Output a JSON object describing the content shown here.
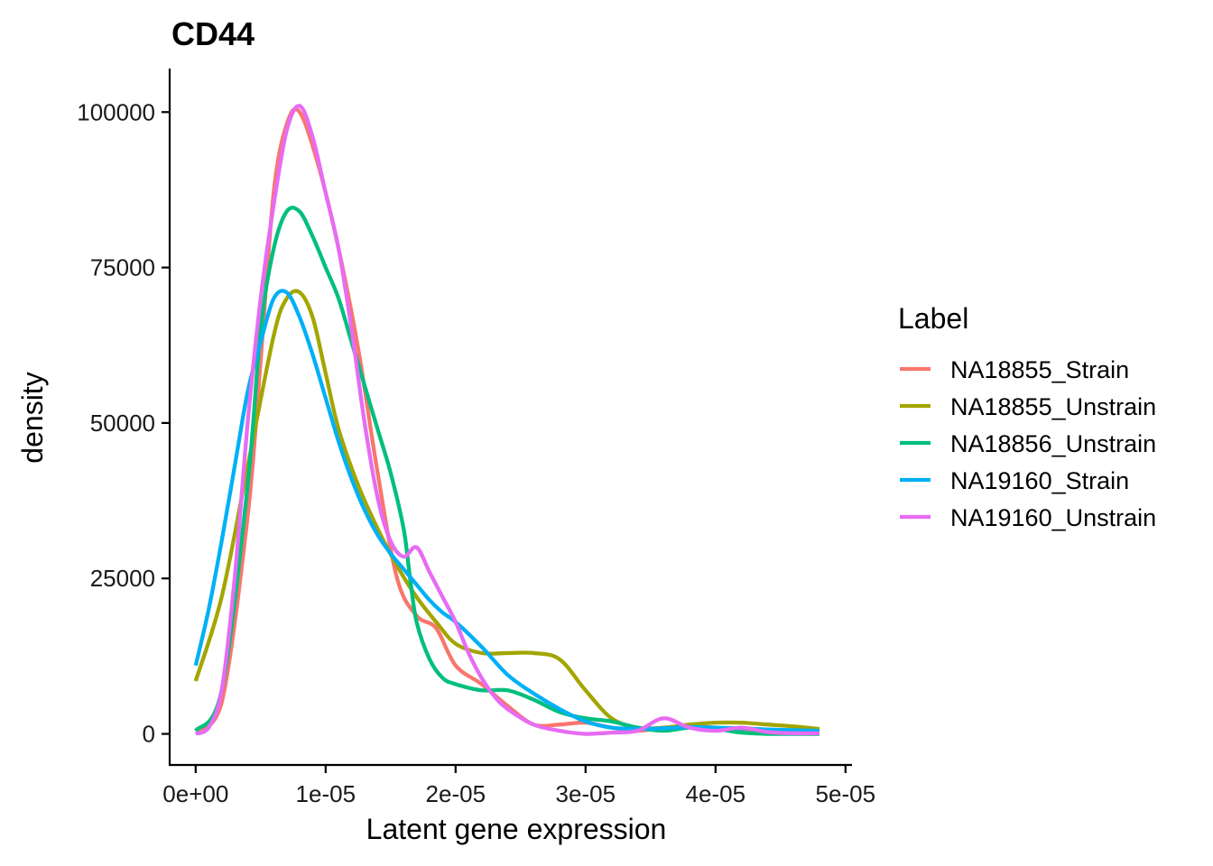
{
  "chart_data": {
    "type": "line",
    "title": "CD44",
    "xlabel": "Latent gene expression",
    "ylabel": "density",
    "xlim": [
      -2e-06,
      5.05e-05
    ],
    "ylim": [
      -5000,
      107000
    ],
    "x_ticks": [
      {
        "value": 0.0,
        "label": "0e+00"
      },
      {
        "value": 1e-05,
        "label": "1e-05"
      },
      {
        "value": 2e-05,
        "label": "2e-05"
      },
      {
        "value": 3e-05,
        "label": "3e-05"
      },
      {
        "value": 4e-05,
        "label": "4e-05"
      },
      {
        "value": 5e-05,
        "label": "5e-05"
      }
    ],
    "y_ticks": [
      {
        "value": 0,
        "label": "0"
      },
      {
        "value": 25000,
        "label": "25000"
      },
      {
        "value": 50000,
        "label": "50000"
      },
      {
        "value": 75000,
        "label": "75000"
      },
      {
        "value": 100000,
        "label": "100000"
      }
    ],
    "grid": false,
    "legend": {
      "title": "Label",
      "position": "right"
    },
    "series": [
      {
        "name": "NA18855_Strain",
        "color": "#F8766D",
        "x": [
          0.0,
          2e-06,
          4e-06,
          5e-06,
          6e-06,
          7e-06,
          8e-06,
          9.5e-06,
          1.1e-05,
          1.25e-05,
          1.4e-05,
          1.55e-05,
          1.7e-05,
          1.85e-05,
          2e-05,
          2.2e-05,
          2.4e-05,
          2.6e-05,
          2.8e-05,
          3e-05,
          3.2e-05,
          3.4e-05,
          3.6e-05,
          3.8e-05,
          4e-05,
          4.2e-05,
          4.4e-05,
          4.6e-05,
          4.8e-05
        ],
        "y": [
          500,
          5000,
          35000,
          60000,
          87000,
          98000,
          100000,
          91000,
          78000,
          62000,
          42000,
          25000,
          19000,
          17000,
          11000,
          8000,
          4500,
          1500,
          1500,
          1800,
          1000,
          500,
          1000,
          1200,
          1000,
          500,
          300,
          200,
          200
        ]
      },
      {
        "name": "NA18855_Unstrain",
        "color": "#A3A500",
        "x": [
          0.0,
          2e-06,
          4e-06,
          6e-06,
          7e-06,
          8e-06,
          9e-06,
          1e-05,
          1.1e-05,
          1.25e-05,
          1.4e-05,
          1.55e-05,
          1.7e-05,
          1.85e-05,
          2e-05,
          2.2e-05,
          2.4e-05,
          2.6e-05,
          2.8e-05,
          3e-05,
          3.2e-05,
          3.4e-05,
          3.6e-05,
          3.8e-05,
          4e-05,
          4.2e-05,
          4.4e-05,
          4.6e-05,
          4.8e-05
        ],
        "y": [
          8500,
          22000,
          43000,
          64000,
          70000,
          71000,
          67000,
          58000,
          49000,
          40000,
          33000,
          27000,
          22000,
          18000,
          14500,
          13000,
          13000,
          13000,
          12000,
          7000,
          2500,
          1000,
          1000,
          1500,
          1800,
          1800,
          1500,
          1200,
          800
        ]
      },
      {
        "name": "NA18856_Unstrain",
        "color": "#00BF7D",
        "x": [
          0.0,
          2e-06,
          4e-06,
          5e-06,
          6e-06,
          7e-06,
          8e-06,
          9e-06,
          1e-05,
          1.1e-05,
          1.2e-05,
          1.3e-05,
          1.4e-05,
          1.5e-05,
          1.6e-05,
          1.65e-05,
          1.7e-05,
          1.8e-05,
          1.9e-05,
          2e-05,
          2.2e-05,
          2.4e-05,
          2.6e-05,
          2.8e-05,
          3e-05,
          3.2e-05,
          3.4e-05,
          3.6e-05,
          3.8e-05,
          4e-05,
          4.2e-05,
          4.4e-05,
          4.6e-05,
          4.8e-05
        ],
        "y": [
          500,
          7000,
          40000,
          65000,
          78000,
          84000,
          84000,
          80000,
          75000,
          70000,
          63000,
          56000,
          49000,
          42000,
          33000,
          25000,
          18000,
          12000,
          9000,
          8000,
          7000,
          7000,
          5500,
          3500,
          2500,
          2000,
          1000,
          500,
          1000,
          800,
          200,
          0,
          0,
          0
        ]
      },
      {
        "name": "NA19160_Strain",
        "color": "#00B0F6",
        "x": [
          0.0,
          1e-06,
          2e-06,
          3e-06,
          4e-06,
          5e-06,
          6e-06,
          7e-06,
          8e-06,
          9e-06,
          1e-05,
          1.1e-05,
          1.2e-05,
          1.3e-05,
          1.4e-05,
          1.5e-05,
          1.6e-05,
          1.7e-05,
          1.8e-05,
          1.9e-05,
          2e-05,
          2.2e-05,
          2.4e-05,
          2.6e-05,
          2.8e-05,
          3e-05,
          3.2e-05,
          3.4e-05,
          3.6e-05,
          3.8e-05,
          4e-05,
          4.2e-05,
          4.4e-05,
          4.6e-05,
          4.8e-05
        ],
        "y": [
          11000,
          20000,
          31000,
          43000,
          55000,
          63000,
          70000,
          71000,
          67000,
          61000,
          54000,
          47000,
          41000,
          36000,
          32000,
          29000,
          26500,
          24000,
          21500,
          19500,
          18000,
          14000,
          9500,
          6500,
          4000,
          2000,
          1000,
          800,
          900,
          1100,
          1000,
          900,
          700,
          600,
          500
        ]
      },
      {
        "name": "NA19160_Unstrain",
        "color": "#E76BF3",
        "x": [
          0.0,
          1e-06,
          2e-06,
          3e-06,
          4e-06,
          5e-06,
          6e-06,
          7e-06,
          8e-06,
          9e-06,
          1e-05,
          1.1e-05,
          1.2e-05,
          1.3e-05,
          1.4e-05,
          1.5e-05,
          1.6e-05,
          1.7e-05,
          1.8e-05,
          1.9e-05,
          2e-05,
          2.1e-05,
          2.2e-05,
          2.3e-05,
          2.4e-05,
          2.6e-05,
          2.8e-05,
          3e-05,
          3.2e-05,
          3.4e-05,
          3.6e-05,
          3.8e-05,
          4e-05,
          4.2e-05,
          4.4e-05,
          4.6e-05,
          4.8e-05
        ],
        "y": [
          0,
          1000,
          7000,
          25000,
          50000,
          70000,
          85000,
          97000,
          101000,
          96000,
          87000,
          78000,
          65000,
          50000,
          38000,
          31000,
          28500,
          30000,
          26000,
          22000,
          18000,
          13000,
          9000,
          6000,
          4000,
          1500,
          500,
          0,
          200,
          500,
          2500,
          1000,
          500,
          1000,
          300,
          100,
          100
        ]
      }
    ]
  }
}
